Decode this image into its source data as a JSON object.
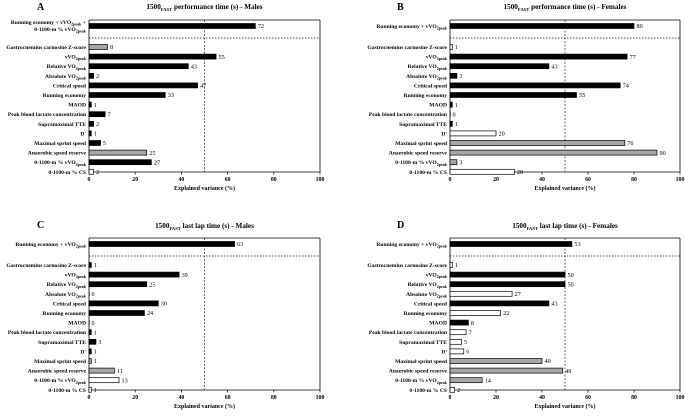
{
  "figure": {
    "xlabel": "Explained variance (%)",
    "colors": {
      "black": "#000000",
      "gray": "#a6a6a6",
      "white": "#ffffff"
    }
  },
  "chart_data": [
    {
      "panel": "A",
      "type": "bar",
      "orientation": "horizontal",
      "title_main": "1500",
      "title_sub": "FAST",
      "title_rest": " performance time (s) - Males",
      "xlabel": "Explained variance (%)",
      "xlim": [
        0,
        100
      ],
      "xticks": [
        0,
        20,
        40,
        60,
        80,
        100
      ],
      "vline": 50,
      "bars": [
        {
          "label": "Running economy + vVO2peak +",
          "label2": "0-1100-m % vVO2peak",
          "value": 72,
          "fill": "black"
        },
        {
          "label": "Gastrocnemius carnosine Z-score",
          "value": 8,
          "fill": "gray"
        },
        {
          "label": "vVO2peak",
          "value": 55,
          "fill": "black"
        },
        {
          "label": "Relative VO2peak",
          "value": 43,
          "fill": "black"
        },
        {
          "label": "Absolute VO2peak",
          "value": 2,
          "fill": "black"
        },
        {
          "label": "Critical speed",
          "value": 47,
          "fill": "black"
        },
        {
          "label": "Running economy",
          "value": 33,
          "fill": "black"
        },
        {
          "label": "MAOD",
          "value": 1,
          "fill": "black"
        },
        {
          "label": "Peak blood lactate concentration",
          "value": 7,
          "fill": "black"
        },
        {
          "label": "Supramaximal TTE",
          "value": 2,
          "fill": "black"
        },
        {
          "label": "D'",
          "value": 1,
          "fill": "black"
        },
        {
          "label": "Maximal sprint speed",
          "value": 5,
          "fill": "black"
        },
        {
          "label": "Anaerobic speed reserve",
          "value": 25,
          "fill": "gray"
        },
        {
          "label": "0-1100-m % vVO2peak",
          "value": 27,
          "fill": "black"
        },
        {
          "label": "0-1100-m % CS",
          "value": 2,
          "fill": "white"
        }
      ]
    },
    {
      "panel": "B",
      "type": "bar",
      "orientation": "horizontal",
      "title_main": "1500",
      "title_sub": "FAST",
      "title_rest": " performance time (s) - Females",
      "xlabel": "Explained variance (%)",
      "xlim": [
        0,
        100
      ],
      "xticks": [
        0,
        20,
        40,
        60,
        80,
        100
      ],
      "vline": 50,
      "bars": [
        {
          "label": "Running economy + vVO2peak",
          "value": 80,
          "fill": "black"
        },
        {
          "label": "Gastrocnemius carnosine Z-score",
          "value": 1,
          "fill": "white"
        },
        {
          "label": "vVO2peak",
          "value": 77,
          "fill": "black"
        },
        {
          "label": "Relative VO2peak",
          "value": 43,
          "fill": "black"
        },
        {
          "label": "Absolute VO2peak",
          "value": 3,
          "fill": "black"
        },
        {
          "label": "Critical speed",
          "value": 74,
          "fill": "black"
        },
        {
          "label": "Running economy",
          "value": 55,
          "fill": "black"
        },
        {
          "label": "MAOD",
          "value": 1,
          "fill": "black"
        },
        {
          "label": "Peak blood lactate concentration",
          "value": 0,
          "fill": "black"
        },
        {
          "label": "Supramaximal TTE",
          "value": 1,
          "fill": "black"
        },
        {
          "label": "D'",
          "value": 20,
          "fill": "white"
        },
        {
          "label": "Maximal sprint speed",
          "value": 76,
          "fill": "gray"
        },
        {
          "label": "Anaerobic speed reserve",
          "value": 90,
          "fill": "gray"
        },
        {
          "label": "0-1100-m % vVO2peak",
          "value": 3,
          "fill": "gray"
        },
        {
          "label": "0-1100-m % CS",
          "value": 28,
          "fill": "white"
        }
      ]
    },
    {
      "panel": "C",
      "type": "bar",
      "orientation": "horizontal",
      "title_main": "1500",
      "title_sub": "FAST",
      "title_rest": " last lap time (s) - Males",
      "xlabel": "Explained variance (%)",
      "xlim": [
        0,
        100
      ],
      "xticks": [
        0,
        20,
        40,
        60,
        80,
        100
      ],
      "vline": 50,
      "bars": [
        {
          "label": "Running economy + vVO2peak",
          "value": 63,
          "fill": "black"
        },
        {
          "label": "Gastrocnemius carnosine Z-score",
          "value": 1,
          "fill": "black"
        },
        {
          "label": "vVO2peak",
          "value": 39,
          "fill": "black"
        },
        {
          "label": "Relative VO2peak",
          "value": 25,
          "fill": "black"
        },
        {
          "label": "Absolute VO2peak",
          "value": 0,
          "fill": "black"
        },
        {
          "label": "Critical speed",
          "value": 30,
          "fill": "black"
        },
        {
          "label": "Running economy",
          "value": 24,
          "fill": "black"
        },
        {
          "label": "MAOD",
          "value": 0,
          "fill": "black"
        },
        {
          "label": "Peak blood lactate concentration",
          "value": 1,
          "fill": "black"
        },
        {
          "label": "Supramaximal TTE",
          "value": 3,
          "fill": "black"
        },
        {
          "label": "D'",
          "value": 1,
          "fill": "black"
        },
        {
          "label": "Maximal sprint speed",
          "value": 1,
          "fill": "gray"
        },
        {
          "label": "Anaerobic speed reserve",
          "value": 11,
          "fill": "gray"
        },
        {
          "label": "0-1100-m % vVO2peak",
          "value": 13,
          "fill": "white"
        },
        {
          "label": "0-1100-m % CS",
          "value": 1,
          "fill": "white"
        }
      ]
    },
    {
      "panel": "D",
      "type": "bar",
      "orientation": "horizontal",
      "title_main": "1500",
      "title_sub": "FAST",
      "title_rest": " last lap time (s) - Females",
      "xlabel": "Explained variance (%)",
      "xlim": [
        0,
        100
      ],
      "xticks": [
        0,
        20,
        40,
        60,
        80,
        100
      ],
      "vline": 50,
      "bars": [
        {
          "label": "Running economy + vVO2peak",
          "value": 53,
          "fill": "black"
        },
        {
          "label": "Gastrocnemius carnosine Z-score",
          "value": 1,
          "fill": "white"
        },
        {
          "label": "vVO2peak",
          "value": 50,
          "fill": "black"
        },
        {
          "label": "Relative VO2peak",
          "value": 50,
          "fill": "black"
        },
        {
          "label": "Absolute VO2peak",
          "value": 27,
          "fill": "white"
        },
        {
          "label": "Critical speed",
          "value": 43,
          "fill": "black"
        },
        {
          "label": "Running economy",
          "value": 22,
          "fill": "white"
        },
        {
          "label": "MAOD",
          "value": 8,
          "fill": "black"
        },
        {
          "label": "Peak blood lactate concentration",
          "value": 7,
          "fill": "white"
        },
        {
          "label": "Supramaximal TTE",
          "value": 5,
          "fill": "white"
        },
        {
          "label": "D'",
          "value": 6,
          "fill": "white"
        },
        {
          "label": "Maximal sprint speed",
          "value": 40,
          "fill": "gray"
        },
        {
          "label": "Anaerobic speed reserve",
          "value": 49,
          "fill": "gray"
        },
        {
          "label": "0-1100-m % vVO2peak",
          "value": 14,
          "fill": "gray"
        },
        {
          "label": "0-1100-m % CS",
          "value": 2,
          "fill": "white"
        }
      ]
    }
  ]
}
